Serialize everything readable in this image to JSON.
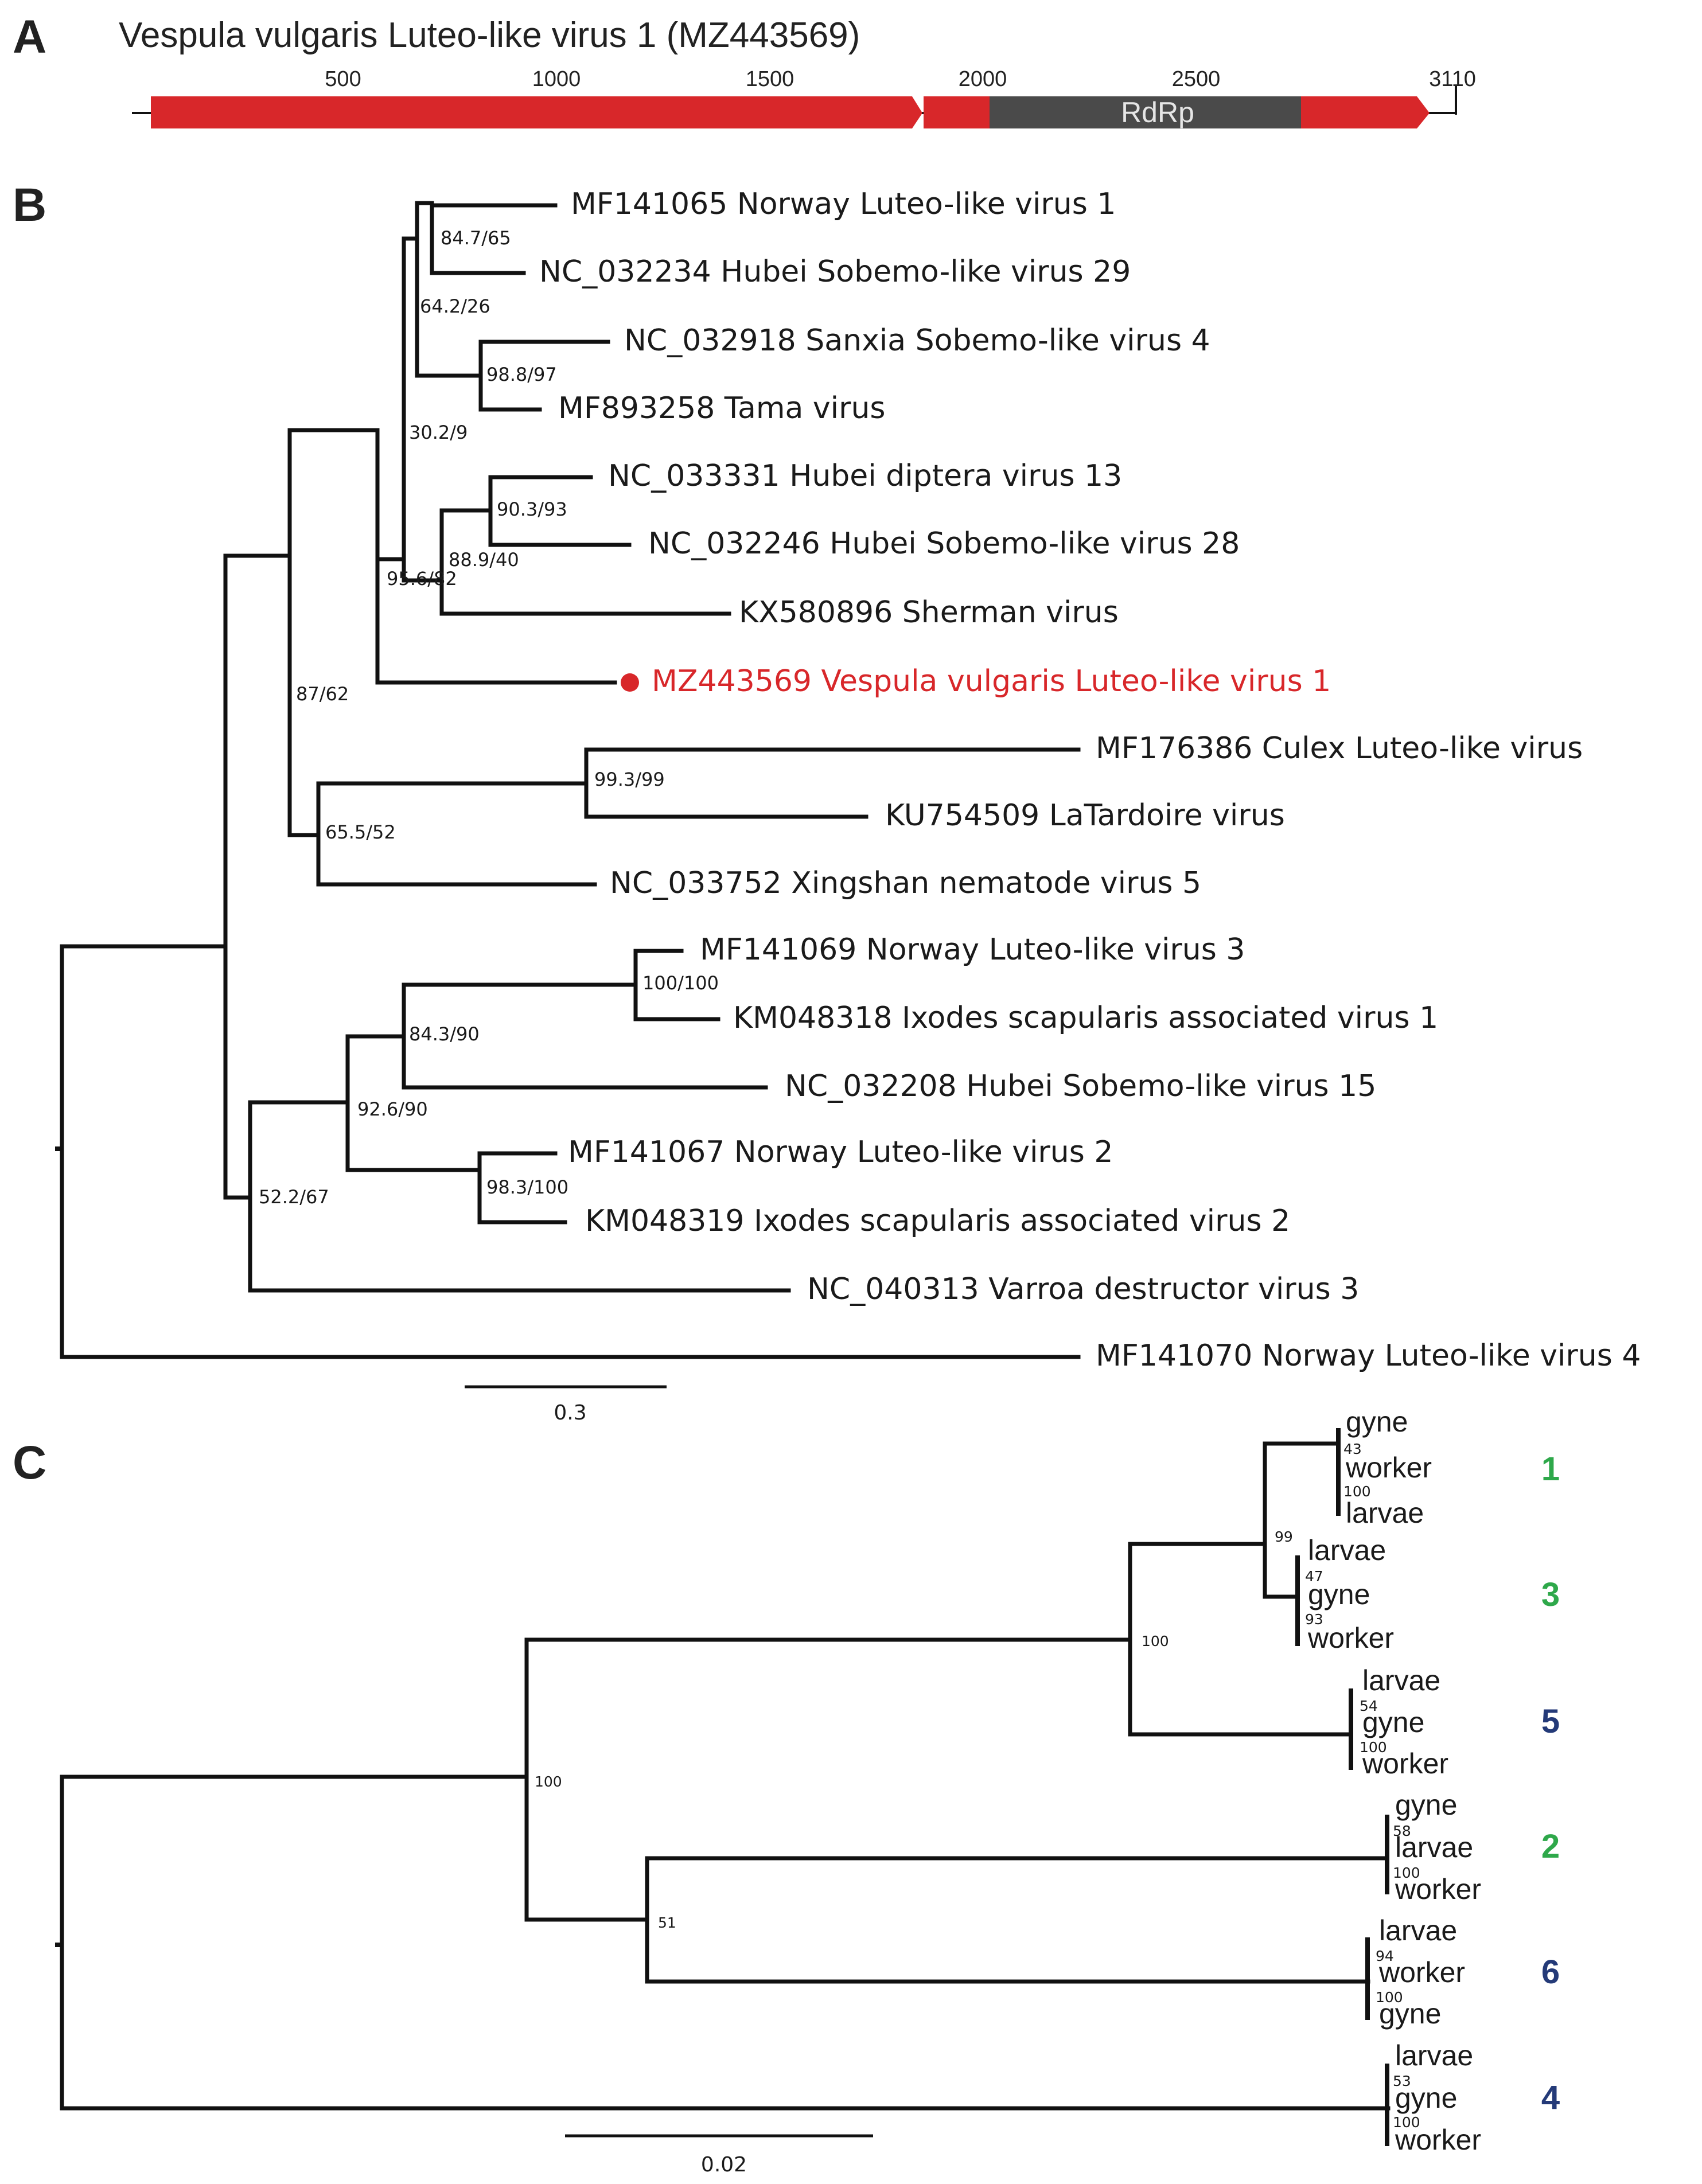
{
  "colors": {
    "orf": "#d8272a",
    "rdrp": "#4a4a4a",
    "highlight": "#d8272a",
    "green": "#2ea84a",
    "blue": "#243a78"
  },
  "panel_a": {
    "letter": "A",
    "title": "Vespula vulgaris Luteo-like virus 1 (MZ443569)",
    "ticks": [
      "500",
      "1000",
      "1500",
      "2000",
      "2500",
      "3110"
    ],
    "domain_label": "RdRp"
  },
  "panel_b": {
    "letter": "B",
    "taxa": [
      "MF141065 Norway Luteo-like virus 1",
      "NC_032234 Hubei Sobemo-like virus 29",
      "NC_032918 Sanxia Sobemo-like virus 4",
      "MF893258 Tama virus",
      "NC_033331 Hubei diptera virus 13",
      "NC_032246 Hubei Sobemo-like virus 28",
      "KX580896 Sherman virus",
      "MZ443569 Vespula vulgaris Luteo-like virus 1",
      "MF176386 Culex Luteo-like virus",
      "KU754509 LaTardoire virus",
      "NC_033752 Xingshan nematode virus 5",
      "MF141069 Norway Luteo-like virus 3",
      "KM048318 Ixodes scapularis associated virus 1",
      "NC_032208 Hubei Sobemo-like virus 15",
      "MF141067 Norway Luteo-like virus 2",
      "KM048319 Ixodes scapularis associated virus 2",
      "NC_040313 Varroa destructor virus 3",
      "MF141070 Norway Luteo-like virus 4"
    ],
    "supports": [
      "84.7/65",
      "64.2/26",
      "98.8/97",
      "30.2/9",
      "90.3/93",
      "88.9/40",
      "95.6/82",
      "87/62",
      "99.3/99",
      "65.5/52",
      "100/100",
      "84.3/90",
      "92.6/90",
      "98.3/100",
      "52.2/67"
    ],
    "scale_label": "0.3"
  },
  "panel_c": {
    "letter": "C",
    "clusters": [
      {
        "id": "1",
        "tips": [
          "gyne",
          "worker",
          "larvae"
        ],
        "supports": [
          "43",
          "100"
        ]
      },
      {
        "id": "3",
        "tips": [
          "larvae",
          "gyne",
          "worker"
        ],
        "supports": [
          "47",
          "93"
        ]
      },
      {
        "id": "5",
        "tips": [
          "larvae",
          "gyne",
          "worker"
        ],
        "supports": [
          "54",
          "100"
        ]
      },
      {
        "id": "2",
        "tips": [
          "gyne",
          "larvae",
          "worker"
        ],
        "supports": [
          "58",
          "100"
        ]
      },
      {
        "id": "6",
        "tips": [
          "larvae",
          "worker",
          "gyne"
        ],
        "supports": [
          "94",
          "100"
        ]
      },
      {
        "id": "4",
        "tips": [
          "larvae",
          "gyne",
          "worker"
        ],
        "supports": [
          "53",
          "100"
        ]
      }
    ],
    "node_supports": [
      "99",
      "100",
      "100",
      "51"
    ],
    "scale_label": "0.02"
  }
}
